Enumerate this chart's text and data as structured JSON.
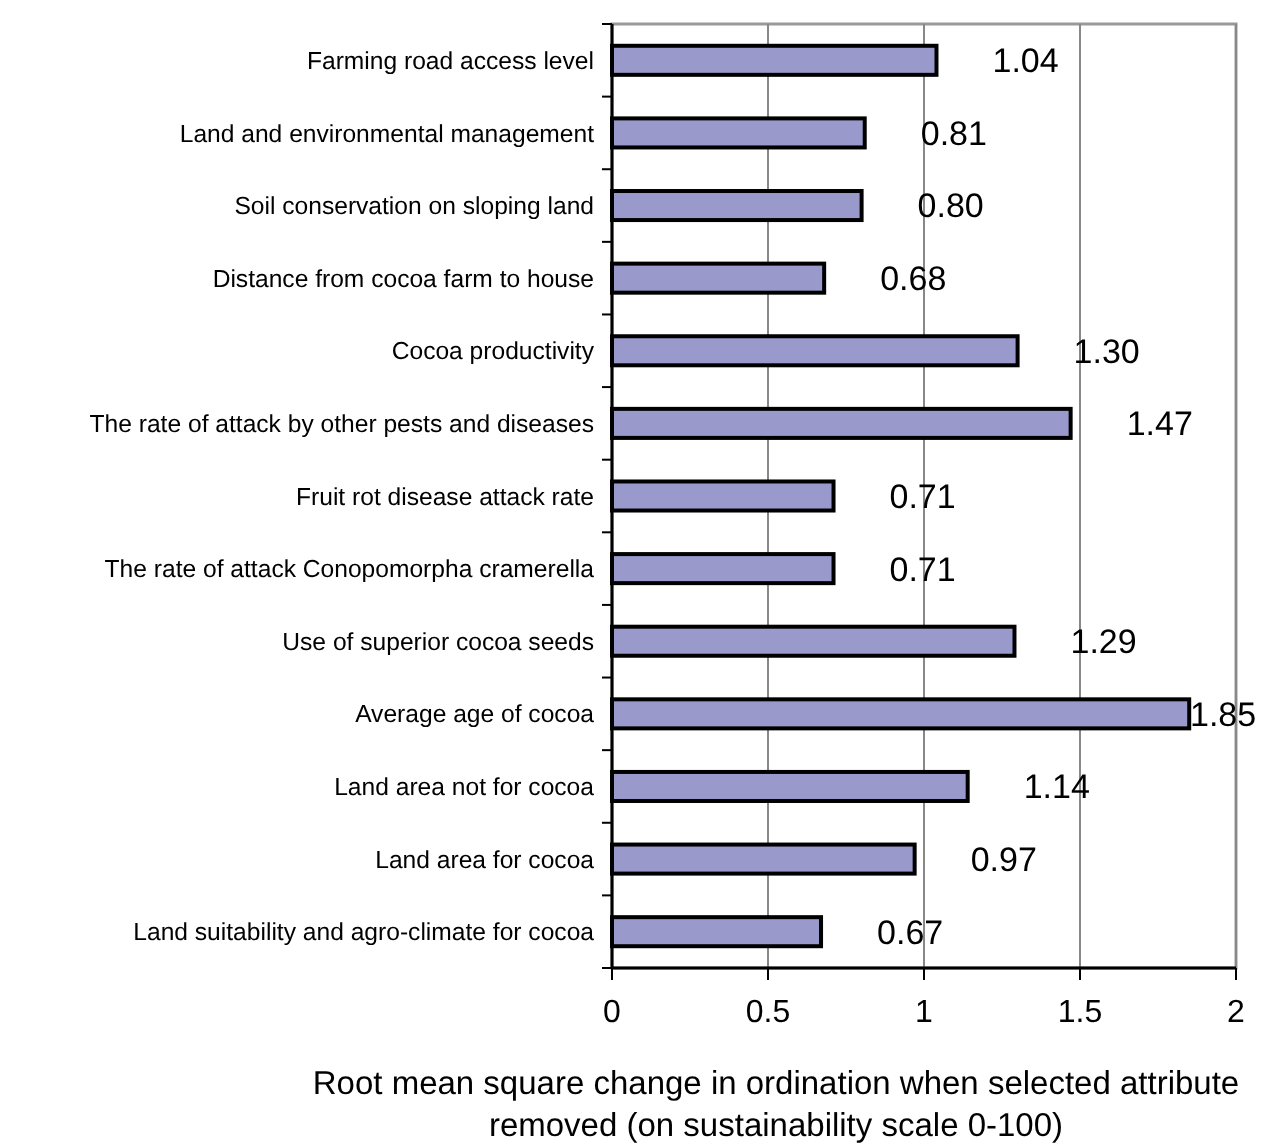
{
  "chart_data": {
    "type": "bar",
    "orientation": "horizontal",
    "xlabel": "Root mean square change in ordination when selected attribute removed (on sustainability scale 0-100)",
    "categories": [
      "Farming road access level",
      "Land and environmental management",
      "Soil conservation on sloping land",
      "Distance from cocoa farm to house",
      "Cocoa productivity",
      "The rate of attack by other pests and diseases",
      "Fruit rot disease attack rate",
      "The rate of attack Conopomorpha cramerella",
      "Use of superior cocoa seeds",
      "Average age of cocoa",
      "Land area not for cocoa",
      "Land area for cocoa",
      "Land suitability and agro-climate for cocoa"
    ],
    "values": [
      1.04,
      0.81,
      0.8,
      0.68,
      1.3,
      1.47,
      0.71,
      0.71,
      1.29,
      1.85,
      1.14,
      0.97,
      0.67
    ],
    "value_labels": [
      "1.04",
      "0.81",
      "0.80",
      "0.68",
      "1.30",
      "1.47",
      "0.71",
      "0.71",
      "1.29",
      "1.85",
      "1.14",
      "0.97",
      "0.67"
    ],
    "color": "#9999cc",
    "xlim": [
      0,
      2
    ],
    "xticks": [
      0,
      0.5,
      1,
      1.5,
      2
    ],
    "grid": "x"
  }
}
